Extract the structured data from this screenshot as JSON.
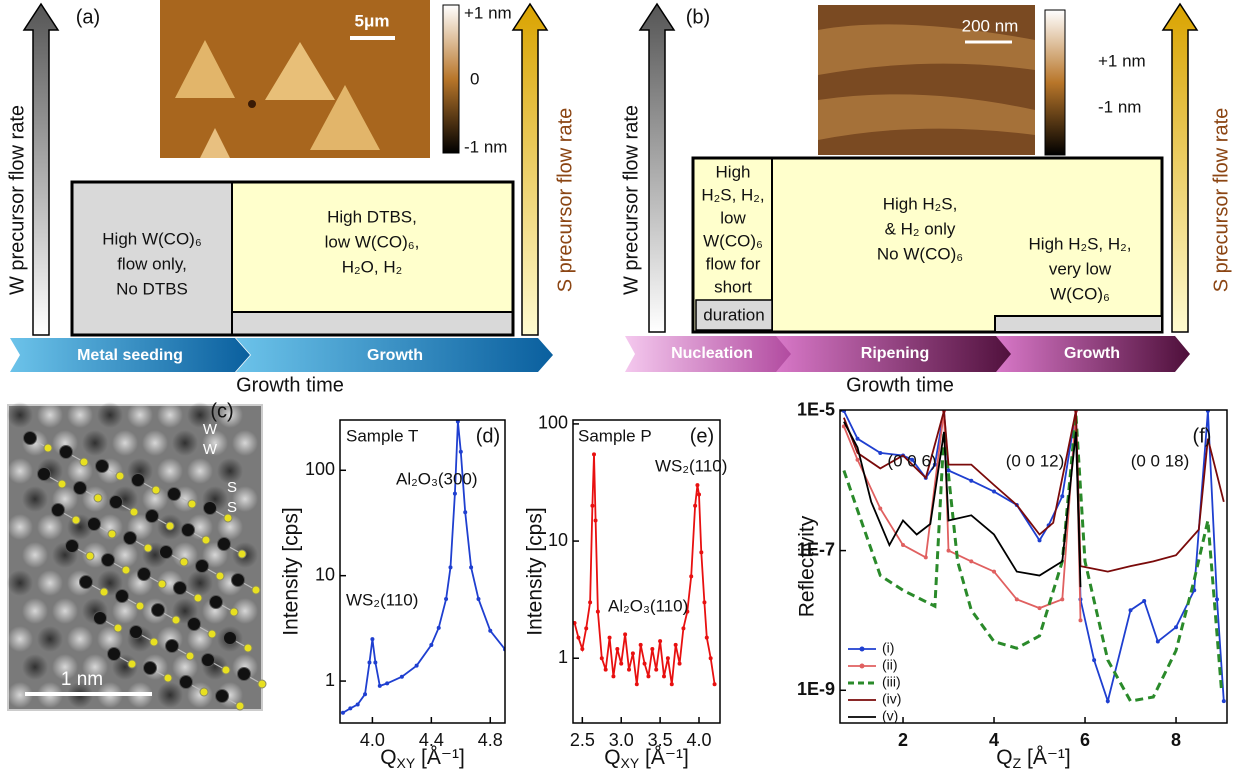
{
  "panel_a": {
    "label": "(a)",
    "w_axis": "W precursor flow rate",
    "s_axis": "S precursor flow rate",
    "seed_box": [
      "High W(CO)₆",
      "flow only,",
      "No DTBS"
    ],
    "growth_box": [
      "High DTBS,",
      "low W(CO)₆,",
      "H₂O, H₂"
    ],
    "stages": [
      "Metal seeding",
      "Growth"
    ],
    "xlabel": "Growth time",
    "afm": {
      "scale_bar": "5μm",
      "colorbar": [
        "+1 nm",
        "0",
        "-1 nm"
      ]
    }
  },
  "panel_b": {
    "label": "(b)",
    "w_axis": "W precursor flow rate",
    "s_axis": "S precursor flow rate",
    "nucleation_box": [
      "High",
      "H₂S, H₂,",
      "low",
      "W(CO)₆",
      "flow for",
      "short",
      "duration"
    ],
    "ripening_box": [
      "High H₂S,",
      "& H₂ only",
      "No W(CO)₆"
    ],
    "growth_box": [
      "High H₂S, H₂,",
      "very low",
      "W(CO)₆"
    ],
    "stages": [
      "Nucleation",
      "Ripening",
      "Growth"
    ],
    "xlabel": "Growth time",
    "afm": {
      "scale_bar": "200 nm",
      "colorbar": [
        "+1 nm",
        "-1 nm"
      ]
    }
  },
  "panel_c": {
    "label": "(c)",
    "atoms": [
      "W",
      "W",
      "S",
      "S"
    ],
    "scale_bar": "1 nm"
  },
  "chart_data": [
    {
      "type": "line",
      "log_y": true,
      "ylabel": "Intensity [cps]",
      "xlabel": {
        "main": "Q",
        "sub": "XY",
        "rest": " [Å⁻¹]"
      },
      "annotations": [
        "Sample T",
        "(d)",
        "Al₂O₃(300)",
        "WS₂(110)"
      ],
      "xlim": [
        3.78,
        4.9
      ],
      "ylim": [
        0.4,
        300
      ],
      "xticks": [
        {
          "value": 4,
          "label": "4.0"
        },
        4.4,
        4.8
      ],
      "yticks": [
        1,
        10,
        100
      ],
      "x": [
        3.8,
        3.85,
        3.9,
        3.95,
        3.98,
        4.0,
        4.02,
        4.05,
        4.1,
        4.2,
        4.3,
        4.4,
        4.45,
        4.5,
        4.53,
        4.56,
        4.58,
        4.6,
        4.63,
        4.67,
        4.72,
        4.8,
        4.9
      ],
      "series": [
        {
          "color": "#1f3fd0",
          "marker": true,
          "values": [
            0.5,
            0.55,
            0.6,
            0.75,
            1.5,
            2.5,
            1.5,
            0.9,
            0.95,
            1.1,
            1.4,
            2.2,
            3.2,
            6,
            12,
            60,
            290,
            150,
            40,
            12,
            6,
            3,
            2
          ]
        }
      ]
    },
    {
      "type": "line",
      "log_y": true,
      "ylabel": "Intensity [cps]",
      "xlabel": {
        "main": "Q",
        "sub": "XY",
        "rest": " [Å⁻¹]"
      },
      "annotations": [
        "Sample P",
        "(e)",
        "WS₂(110)",
        "Al₂O₃(110)"
      ],
      "xlim": [
        2.38,
        4.27
      ],
      "ylim": [
        0.28,
        108
      ],
      "xticks": [
        2.5,
        {
          "value": 3,
          "label": "3.0"
        },
        3.5,
        {
          "value": 4,
          "label": "4.0"
        }
      ],
      "yticks": [
        1,
        10,
        100
      ],
      "x": [
        2.4,
        2.45,
        2.5,
        2.55,
        2.6,
        2.63,
        2.65,
        2.67,
        2.7,
        2.75,
        2.8,
        2.85,
        2.9,
        2.95,
        3.0,
        3.05,
        3.1,
        3.15,
        3.2,
        3.25,
        3.3,
        3.35,
        3.4,
        3.45,
        3.5,
        3.55,
        3.6,
        3.65,
        3.7,
        3.75,
        3.8,
        3.85,
        3.9,
        3.95,
        3.98,
        4.0,
        4.03,
        4.07,
        4.1,
        4.15,
        4.2
      ],
      "series": [
        {
          "color": "#e81010",
          "marker": true,
          "values": [
            2.0,
            1.5,
            1.2,
            1.8,
            3.0,
            20,
            55,
            15,
            2.5,
            1.0,
            0.8,
            1.5,
            0.7,
            1.2,
            0.9,
            1.6,
            0.8,
            1.1,
            0.6,
            1.3,
            0.9,
            0.7,
            1.2,
            0.8,
            1.4,
            0.7,
            1.0,
            0.6,
            1.3,
            0.9,
            1.8,
            2.5,
            5,
            20,
            30,
            25,
            8,
            3,
            1.5,
            1.0,
            0.6
          ]
        }
      ]
    },
    {
      "type": "line",
      "log_y": true,
      "ylabel": "Reflectivity",
      "xlabel": {
        "main": "Q",
        "sub": "Z",
        "rest": " [Å⁻¹]"
      },
      "annotations": [
        "(0 0 6)",
        "(0 0 12)",
        "(0 0 18)",
        "(f)"
      ],
      "xlim": [
        0.615,
        9.12
      ],
      "ylim": [
        3.4e-10,
        1.03e-05
      ],
      "xticks": [
        2,
        4,
        6,
        8
      ],
      "yticks": [
        {
          "value": 1e-05,
          "label": "1E-5"
        },
        {
          "value": 1e-07,
          "label": "1E-7"
        },
        {
          "value": 1e-09,
          "label": "1E-9"
        }
      ],
      "legend": "lower left",
      "series": [
        {
          "name": "(i)",
          "color": "#1f3fd0",
          "marker": true,
          "x": [
            0.7,
            1.0,
            1.5,
            2.0,
            2.2,
            2.5,
            2.7,
            2.9,
            3.0,
            3.5,
            4.0,
            4.5,
            5.0,
            5.2,
            5.5,
            5.8,
            5.9,
            6.2,
            6.5,
            7.0,
            7.3,
            7.6,
            8.0,
            8.4,
            8.7,
            8.9,
            9.05
          ],
          "values": [
            1e-05,
            4e-06,
            2.5e-06,
            2.3e-06,
            2e-06,
            1.1e-06,
            1.7e-06,
            1e-05,
            1.4e-06,
            1e-06,
            7e-07,
            4.5e-07,
            1.4e-07,
            2.3e-07,
            6e-07,
            1e-05,
            2e-08,
            2.7e-09,
            7e-10,
            1.4e-08,
            1.9e-08,
            5e-09,
            8e-09,
            2.7e-08,
            1e-05,
            2e-08,
            7e-10
          ]
        },
        {
          "name": "(ii)",
          "color": "#e06060",
          "marker": true,
          "x": [
            0.7,
            1.0,
            1.5,
            2.0,
            2.5,
            2.9,
            3.0,
            3.5,
            4.0,
            4.5,
            5.0,
            5.5,
            5.8,
            5.9
          ],
          "values": [
            6e-06,
            2e-06,
            4e-07,
            1.2e-07,
            8e-08,
            1e-05,
            1e-07,
            7e-08,
            5e-08,
            2e-08,
            1.5e-08,
            2e-08,
            1e-05,
            1e-08
          ]
        },
        {
          "name": "(iii)",
          "color": "#2a8a2a",
          "dash": true,
          "x": [
            0.7,
            1.0,
            1.5,
            2.0,
            2.7,
            2.9,
            3.2,
            3.5,
            4.0,
            4.5,
            5.0,
            5.5,
            5.8,
            6.0,
            6.5,
            7.0,
            7.5,
            8.0,
            8.4,
            8.7,
            9.0
          ],
          "values": [
            1.4e-06,
            3.8e-07,
            4.4e-08,
            2.7e-08,
            1.6e-08,
            5e-06,
            7e-08,
            1.4e-08,
            5e-09,
            4e-09,
            6e-09,
            7e-08,
            9e-06,
            7e-08,
            2.7e-09,
            7e-10,
            8e-10,
            3.7e-09,
            3.8e-08,
            2.7e-07,
            1e-09
          ]
        },
        {
          "name": "(iv)",
          "color": "#7a0a0a",
          "x": [
            0.7,
            1.0,
            1.5,
            2.0,
            2.5,
            2.9,
            3.0,
            3.5,
            4.0,
            4.5,
            5.0,
            5.3,
            5.8,
            5.9,
            6.5,
            7.0,
            7.5,
            8.0,
            8.5,
            8.7,
            9.05
          ],
          "values": [
            8e-06,
            2.5e-06,
            1.5e-06,
            2.3e-06,
            1.1e-06,
            1e-05,
            1.7e-06,
            1.7e-06,
            8.7e-07,
            4.5e-07,
            1.7e-07,
            2.5e-07,
            1e-05,
            6e-08,
            5e-08,
            6e-08,
            7e-08,
            8.6e-08,
            2e-07,
            4e-06,
            5e-07
          ]
        },
        {
          "name": "(v)",
          "color": "#000000",
          "x": [
            0.7,
            1.0,
            1.3,
            1.7,
            2.0,
            2.3,
            2.6,
            2.9,
            3.0,
            3.5,
            4.0,
            4.5,
            5.0,
            5.5,
            5.8,
            5.9
          ],
          "values": [
            7e-06,
            3e-06,
            5e-07,
            1.2e-07,
            2.7e-07,
            1.7e-07,
            2.4e-07,
            5e-06,
            2.7e-07,
            3.2e-07,
            1.7e-07,
            5e-08,
            4.4e-08,
            7e-08,
            5e-06,
            3e-08
          ]
        }
      ]
    }
  ]
}
